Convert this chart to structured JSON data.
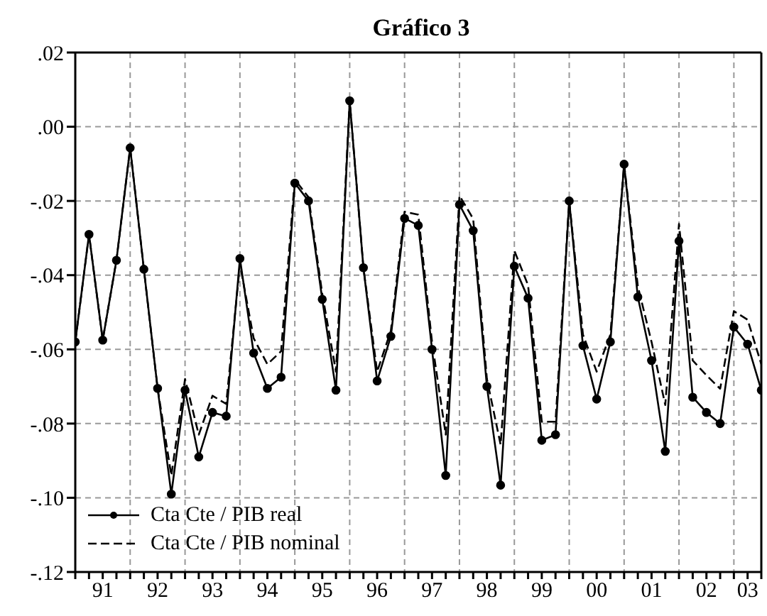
{
  "chart_data": {
    "type": "line",
    "title": "Gráfico 3",
    "categories": [
      null,
      null,
      "91",
      null,
      null,
      null,
      "92",
      null,
      null,
      null,
      "93",
      null,
      null,
      null,
      "94",
      null,
      null,
      null,
      "95",
      null,
      null,
      null,
      "96",
      null,
      null,
      null,
      "97",
      null,
      null,
      null,
      "98",
      null,
      null,
      null,
      "99",
      null,
      null,
      null,
      "00",
      null,
      null,
      null,
      "01",
      null,
      null,
      null,
      "02",
      null,
      null,
      "03",
      null
    ],
    "series": [
      {
        "name": "Cta Cte / PIB real",
        "color": "#000000",
        "marker": "circle",
        "line_style": "solid",
        "values": [
          -0.058,
          -0.029,
          -0.0575,
          -0.036,
          -0.0057,
          -0.0384,
          -0.0705,
          -0.099,
          -0.071,
          -0.089,
          -0.077,
          -0.078,
          -0.0355,
          -0.061,
          -0.0705,
          -0.0675,
          -0.0152,
          -0.02,
          -0.0465,
          -0.071,
          0.007,
          -0.038,
          -0.0685,
          -0.0565,
          -0.0247,
          -0.0266,
          -0.06,
          -0.094,
          -0.021,
          -0.028,
          -0.07,
          -0.0966,
          -0.0376,
          -0.0462,
          -0.0845,
          -0.083,
          -0.02,
          -0.059,
          -0.0734,
          -0.058,
          -0.0101,
          -0.0459,
          -0.063,
          -0.0875,
          -0.0308,
          -0.0729,
          -0.077,
          -0.08,
          -0.054,
          -0.0586,
          -0.071
        ]
      },
      {
        "name": "Cta Cte / PIB nominal",
        "color": "#000000",
        "marker": "none",
        "line_style": "dashed",
        "values": [
          -0.058,
          -0.029,
          -0.0575,
          -0.036,
          -0.0057,
          -0.0384,
          -0.0705,
          -0.094,
          -0.068,
          -0.083,
          -0.0725,
          -0.0747,
          -0.037,
          -0.057,
          -0.064,
          -0.0605,
          -0.0142,
          -0.019,
          -0.045,
          -0.066,
          0.007,
          -0.038,
          -0.066,
          -0.055,
          -0.0229,
          -0.0237,
          -0.058,
          -0.083,
          -0.0186,
          -0.0248,
          -0.068,
          -0.0857,
          -0.0334,
          -0.0427,
          -0.0795,
          -0.0795,
          -0.02,
          -0.056,
          -0.066,
          -0.056,
          -0.0101,
          -0.043,
          -0.058,
          -0.075,
          -0.0262,
          -0.063,
          -0.067,
          -0.0706,
          -0.0497,
          -0.052,
          -0.064
        ]
      }
    ],
    "ylim": [
      -0.12,
      0.02
    ],
    "yticks": [
      {
        "value": -0.12,
        "label": "-.12"
      },
      {
        "value": -0.1,
        "label": "-.10"
      },
      {
        "value": -0.08,
        "label": "-.08"
      },
      {
        "value": -0.06,
        "label": "-.06"
      },
      {
        "value": -0.04,
        "label": "-.04"
      },
      {
        "value": -0.02,
        "label": "-.02"
      },
      {
        "value": 0,
        "label": ".00"
      },
      {
        "value": 0.02,
        "label": ".02"
      }
    ],
    "grid": true,
    "legend": "bottom left"
  }
}
